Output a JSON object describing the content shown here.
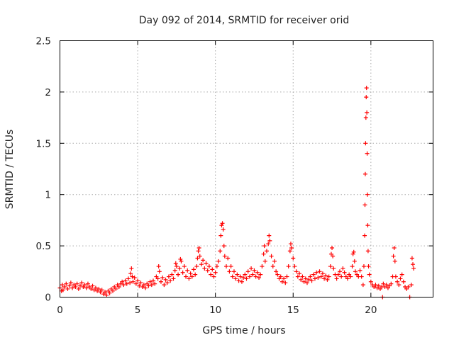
{
  "chart_data": {
    "type": "scatter",
    "title": "Day 092 of 2014, SRMTID for receiver orid",
    "xlabel": "GPS time / hours",
    "ylabel": "SRMTID / TECUs",
    "xlim": [
      0,
      24
    ],
    "ylim": [
      0,
      2.5
    ],
    "x_ticks": [
      0,
      5,
      10,
      15,
      20
    ],
    "x_tick_labels": [
      "0",
      "5",
      "10",
      "15",
      "20"
    ],
    "y_ticks": [
      0,
      0.5,
      1,
      1.5,
      2,
      2.5
    ],
    "y_tick_labels": [
      "0",
      "0.5",
      "1",
      "1.5",
      "2",
      "2.5"
    ],
    "grid": true,
    "marker": "+",
    "series": [
      {
        "name": "SRMTID",
        "color": "#ff0000",
        "points": [
          [
            0.0,
            0.09
          ],
          [
            0.1,
            0.06
          ],
          [
            0.15,
            0.12
          ],
          [
            0.2,
            0.07
          ],
          [
            0.3,
            0.1
          ],
          [
            0.4,
            0.13
          ],
          [
            0.5,
            0.08
          ],
          [
            0.6,
            0.11
          ],
          [
            0.7,
            0.14
          ],
          [
            0.8,
            0.09
          ],
          [
            0.9,
            0.12
          ],
          [
            1.0,
            0.1
          ],
          [
            1.1,
            0.13
          ],
          [
            1.2,
            0.08
          ],
          [
            1.3,
            0.11
          ],
          [
            1.4,
            0.14
          ],
          [
            1.5,
            0.1
          ],
          [
            1.6,
            0.12
          ],
          [
            1.7,
            0.09
          ],
          [
            1.8,
            0.13
          ],
          [
            1.9,
            0.1
          ],
          [
            2.0,
            0.08
          ],
          [
            2.1,
            0.11
          ],
          [
            2.2,
            0.07
          ],
          [
            2.3,
            0.09
          ],
          [
            2.4,
            0.06
          ],
          [
            2.5,
            0.08
          ],
          [
            2.6,
            0.05
          ],
          [
            2.7,
            0.07
          ],
          [
            2.8,
            0.03
          ],
          [
            2.9,
            0.05
          ],
          [
            3.0,
            0.02
          ],
          [
            3.1,
            0.06
          ],
          [
            3.2,
            0.04
          ],
          [
            3.3,
            0.08
          ],
          [
            3.4,
            0.06
          ],
          [
            3.5,
            0.1
          ],
          [
            3.6,
            0.08
          ],
          [
            3.7,
            0.12
          ],
          [
            3.8,
            0.1
          ],
          [
            3.9,
            0.13
          ],
          [
            4.0,
            0.15
          ],
          [
            4.1,
            0.12
          ],
          [
            4.2,
            0.16
          ],
          [
            4.3,
            0.13
          ],
          [
            4.4,
            0.18
          ],
          [
            4.5,
            0.14
          ],
          [
            4.55,
            0.23
          ],
          [
            4.6,
            0.28
          ],
          [
            4.65,
            0.2
          ],
          [
            4.7,
            0.15
          ],
          [
            4.8,
            0.19
          ],
          [
            4.9,
            0.13
          ],
          [
            5.0,
            0.16
          ],
          [
            5.1,
            0.11
          ],
          [
            5.2,
            0.14
          ],
          [
            5.3,
            0.1
          ],
          [
            5.4,
            0.12
          ],
          [
            5.5,
            0.09
          ],
          [
            5.6,
            0.13
          ],
          [
            5.7,
            0.11
          ],
          [
            5.8,
            0.15
          ],
          [
            5.9,
            0.12
          ],
          [
            6.0,
            0.16
          ],
          [
            6.1,
            0.13
          ],
          [
            6.2,
            0.2
          ],
          [
            6.3,
            0.18
          ],
          [
            6.35,
            0.3
          ],
          [
            6.4,
            0.25
          ],
          [
            6.5,
            0.15
          ],
          [
            6.6,
            0.19
          ],
          [
            6.7,
            0.12
          ],
          [
            6.8,
            0.17
          ],
          [
            6.9,
            0.14
          ],
          [
            7.0,
            0.2
          ],
          [
            7.1,
            0.16
          ],
          [
            7.2,
            0.22
          ],
          [
            7.3,
            0.18
          ],
          [
            7.4,
            0.26
          ],
          [
            7.45,
            0.33
          ],
          [
            7.5,
            0.3
          ],
          [
            7.6,
            0.22
          ],
          [
            7.7,
            0.28
          ],
          [
            7.75,
            0.37
          ],
          [
            7.8,
            0.35
          ],
          [
            7.9,
            0.24
          ],
          [
            8.0,
            0.3
          ],
          [
            8.1,
            0.2
          ],
          [
            8.2,
            0.26
          ],
          [
            8.3,
            0.18
          ],
          [
            8.4,
            0.23
          ],
          [
            8.5,
            0.2
          ],
          [
            8.6,
            0.27
          ],
          [
            8.7,
            0.22
          ],
          [
            8.8,
            0.3
          ],
          [
            8.85,
            0.38
          ],
          [
            8.9,
            0.45
          ],
          [
            8.95,
            0.48
          ],
          [
            9.0,
            0.4
          ],
          [
            9.1,
            0.32
          ],
          [
            9.2,
            0.36
          ],
          [
            9.3,
            0.28
          ],
          [
            9.4,
            0.33
          ],
          [
            9.5,
            0.26
          ],
          [
            9.6,
            0.3
          ],
          [
            9.7,
            0.22
          ],
          [
            9.8,
            0.27
          ],
          [
            9.9,
            0.2
          ],
          [
            10.0,
            0.24
          ],
          [
            10.1,
            0.3
          ],
          [
            10.2,
            0.35
          ],
          [
            10.3,
            0.45
          ],
          [
            10.35,
            0.6
          ],
          [
            10.4,
            0.7
          ],
          [
            10.45,
            0.72
          ],
          [
            10.5,
            0.66
          ],
          [
            10.55,
            0.5
          ],
          [
            10.6,
            0.4
          ],
          [
            10.7,
            0.3
          ],
          [
            10.8,
            0.38
          ],
          [
            10.9,
            0.25
          ],
          [
            11.0,
            0.3
          ],
          [
            11.1,
            0.2
          ],
          [
            11.2,
            0.25
          ],
          [
            11.3,
            0.18
          ],
          [
            11.4,
            0.22
          ],
          [
            11.5,
            0.16
          ],
          [
            11.6,
            0.2
          ],
          [
            11.7,
            0.15
          ],
          [
            11.8,
            0.19
          ],
          [
            11.9,
            0.22
          ],
          [
            12.0,
            0.18
          ],
          [
            12.1,
            0.25
          ],
          [
            12.2,
            0.2
          ],
          [
            12.3,
            0.28
          ],
          [
            12.4,
            0.22
          ],
          [
            12.5,
            0.26
          ],
          [
            12.6,
            0.2
          ],
          [
            12.7,
            0.24
          ],
          [
            12.8,
            0.19
          ],
          [
            12.9,
            0.22
          ],
          [
            13.0,
            0.3
          ],
          [
            13.1,
            0.42
          ],
          [
            13.15,
            0.5
          ],
          [
            13.2,
            0.35
          ],
          [
            13.3,
            0.45
          ],
          [
            13.4,
            0.52
          ],
          [
            13.45,
            0.6
          ],
          [
            13.5,
            0.55
          ],
          [
            13.6,
            0.4
          ],
          [
            13.7,
            0.3
          ],
          [
            13.8,
            0.35
          ],
          [
            13.9,
            0.25
          ],
          [
            14.0,
            0.22
          ],
          [
            14.1,
            0.18
          ],
          [
            14.2,
            0.2
          ],
          [
            14.3,
            0.15
          ],
          [
            14.4,
            0.18
          ],
          [
            14.5,
            0.14
          ],
          [
            14.6,
            0.2
          ],
          [
            14.7,
            0.3
          ],
          [
            14.8,
            0.45
          ],
          [
            14.85,
            0.52
          ],
          [
            14.9,
            0.48
          ],
          [
            15.0,
            0.38
          ],
          [
            15.1,
            0.3
          ],
          [
            15.2,
            0.25
          ],
          [
            15.3,
            0.2
          ],
          [
            15.4,
            0.23
          ],
          [
            15.5,
            0.17
          ],
          [
            15.6,
            0.2
          ],
          [
            15.7,
            0.15
          ],
          [
            15.8,
            0.18
          ],
          [
            15.9,
            0.14
          ],
          [
            16.0,
            0.17
          ],
          [
            16.1,
            0.2
          ],
          [
            16.2,
            0.16
          ],
          [
            16.3,
            0.22
          ],
          [
            16.4,
            0.18
          ],
          [
            16.5,
            0.24
          ],
          [
            16.6,
            0.19
          ],
          [
            16.7,
            0.25
          ],
          [
            16.8,
            0.2
          ],
          [
            16.9,
            0.23
          ],
          [
            17.0,
            0.18
          ],
          [
            17.1,
            0.21
          ],
          [
            17.2,
            0.17
          ],
          [
            17.3,
            0.2
          ],
          [
            17.4,
            0.3
          ],
          [
            17.45,
            0.42
          ],
          [
            17.5,
            0.48
          ],
          [
            17.55,
            0.4
          ],
          [
            17.6,
            0.28
          ],
          [
            17.7,
            0.22
          ],
          [
            17.8,
            0.18
          ],
          [
            17.9,
            0.22
          ],
          [
            18.0,
            0.25
          ],
          [
            18.1,
            0.2
          ],
          [
            18.2,
            0.28
          ],
          [
            18.3,
            0.24
          ],
          [
            18.4,
            0.2
          ],
          [
            18.5,
            0.18
          ],
          [
            18.6,
            0.22
          ],
          [
            18.7,
            0.2
          ],
          [
            18.8,
            0.3
          ],
          [
            18.85,
            0.42
          ],
          [
            18.9,
            0.44
          ],
          [
            18.95,
            0.35
          ],
          [
            19.0,
            0.25
          ],
          [
            19.1,
            0.22
          ],
          [
            19.2,
            0.2
          ],
          [
            19.3,
            0.26
          ],
          [
            19.4,
            0.2
          ],
          [
            19.5,
            0.12
          ],
          [
            19.55,
            0.3
          ],
          [
            19.6,
            0.6
          ],
          [
            19.62,
            0.9
          ],
          [
            19.64,
            1.2
          ],
          [
            19.66,
            1.5
          ],
          [
            19.68,
            1.75
          ],
          [
            19.7,
            1.95
          ],
          [
            19.72,
            2.04
          ],
          [
            19.74,
            1.8
          ],
          [
            19.76,
            1.4
          ],
          [
            19.78,
            1.0
          ],
          [
            19.8,
            0.7
          ],
          [
            19.82,
            0.45
          ],
          [
            19.85,
            0.3
          ],
          [
            19.9,
            0.22
          ],
          [
            20.0,
            0.15
          ],
          [
            20.1,
            0.12
          ],
          [
            20.2,
            0.1
          ],
          [
            20.3,
            0.12
          ],
          [
            20.4,
            0.09
          ],
          [
            20.5,
            0.11
          ],
          [
            20.6,
            0.08
          ],
          [
            20.7,
            0.1
          ],
          [
            20.75,
            0.0
          ],
          [
            20.8,
            0.13
          ],
          [
            20.9,
            0.1
          ],
          [
            21.0,
            0.12
          ],
          [
            21.1,
            0.09
          ],
          [
            21.2,
            0.11
          ],
          [
            21.3,
            0.13
          ],
          [
            21.4,
            0.2
          ],
          [
            21.45,
            0.4
          ],
          [
            21.5,
            0.48
          ],
          [
            21.55,
            0.35
          ],
          [
            21.6,
            0.2
          ],
          [
            21.7,
            0.15
          ],
          [
            21.8,
            0.12
          ],
          [
            21.9,
            0.18
          ],
          [
            22.0,
            0.22
          ],
          [
            22.1,
            0.15
          ],
          [
            22.2,
            0.1
          ],
          [
            22.3,
            0.08
          ],
          [
            22.4,
            0.1
          ],
          [
            22.5,
            0.0
          ],
          [
            22.6,
            0.12
          ],
          [
            22.65,
            0.38
          ],
          [
            22.7,
            0.32
          ],
          [
            22.75,
            0.28
          ]
        ]
      }
    ]
  }
}
